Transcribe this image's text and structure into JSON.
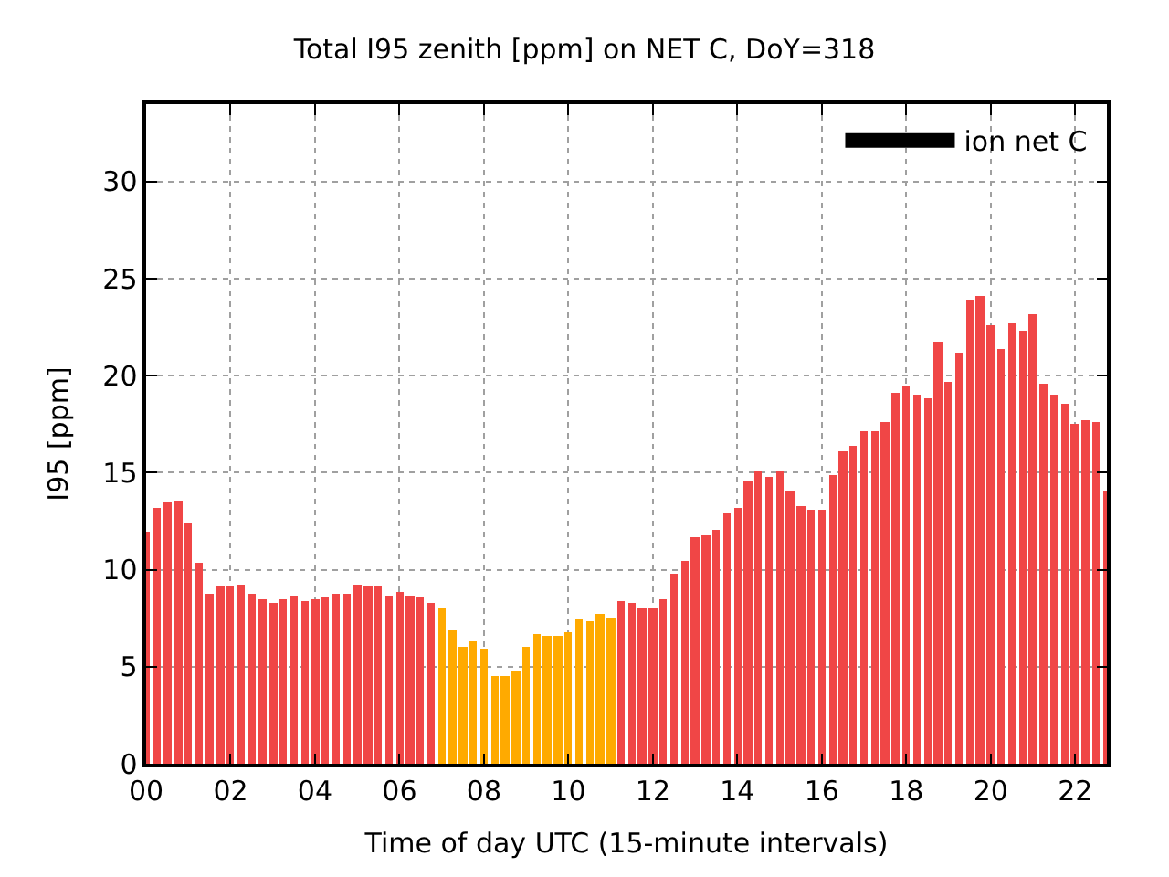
{
  "chart_data": {
    "type": "bar",
    "title": "Total I95 zenith [ppm] on NET C, DoY=318",
    "xlabel": "Time of day UTC (15-minute intervals)",
    "ylabel": "I95 [ppm]",
    "x": [
      0,
      0.25,
      0.5,
      0.75,
      1,
      1.25,
      1.5,
      1.75,
      2,
      2.25,
      2.5,
      2.75,
      3,
      3.25,
      3.5,
      3.75,
      4,
      4.25,
      4.5,
      4.75,
      5,
      5.25,
      5.5,
      5.75,
      6,
      6.25,
      6.5,
      6.75,
      7,
      7.25,
      7.5,
      7.75,
      8,
      8.25,
      8.5,
      8.75,
      9,
      9.25,
      9.5,
      9.75,
      10,
      10.25,
      10.5,
      10.75,
      11,
      11.25,
      11.5,
      11.75,
      12,
      12.25,
      12.5,
      12.75,
      13,
      13.25,
      13.5,
      13.75,
      14,
      14.25,
      14.5,
      14.75,
      15,
      15.25,
      15.5,
      15.75,
      16,
      16.25,
      16.5,
      16.75,
      17,
      17.25,
      17.5,
      17.75,
      18,
      18.25,
      18.5,
      18.75,
      19,
      19.25,
      19.5,
      19.75,
      20,
      20.25,
      20.5,
      20.75,
      21,
      21.25,
      21.5,
      21.75,
      22,
      22.25,
      22.5,
      22.75
    ],
    "series": [
      {
        "name": "ion net C",
        "color": "#000000",
        "values": [
          12.0,
          13.2,
          13.5,
          13.6,
          12.4,
          10.4,
          8.8,
          9.1,
          9.1,
          9.2,
          8.8,
          8.5,
          8.3,
          8.5,
          8.7,
          8.4,
          8.5,
          8.6,
          8.8,
          8.8,
          9.2,
          9.1,
          9.1,
          8.7,
          8.9,
          8.7,
          8.6,
          8.3,
          8.0,
          6.9,
          6.0,
          6.3,
          5.9,
          4.5,
          4.5,
          4.8,
          6.0,
          6.7,
          6.6,
          6.6,
          6.8,
          7.4,
          7.3,
          7.7,
          7.5,
          8.4,
          8.3,
          8.0,
          8.0,
          8.5,
          9.8,
          10.5,
          11.7,
          11.8,
          12.1,
          12.9,
          13.2,
          14.6,
          15.1,
          14.8,
          15.1,
          14.0,
          13.3,
          13.1,
          13.1,
          14.9,
          16.1,
          16.4,
          17.1,
          17.1,
          17.6,
          19.1,
          19.5,
          19.0,
          18.8,
          21.8,
          19.7,
          21.2,
          23.9,
          24.1,
          22.6,
          21.4,
          22.7,
          22.3,
          23.2,
          19.6,
          19.0,
          18.6,
          17.5,
          17.7,
          17.6,
          14.0
        ],
        "colors": [
          "#f04646",
          "#f04646",
          "#f04646",
          "#f04646",
          "#f04646",
          "#f04646",
          "#f04646",
          "#f04646",
          "#f04646",
          "#f04646",
          "#f04646",
          "#f04646",
          "#f04646",
          "#f04646",
          "#f04646",
          "#f04646",
          "#f04646",
          "#f04646",
          "#f04646",
          "#f04646",
          "#f04646",
          "#f04646",
          "#f04646",
          "#f04646",
          "#f04646",
          "#f04646",
          "#f04646",
          "#f04646",
          "#ffaa00",
          "#ffaa00",
          "#ffaa00",
          "#ffaa00",
          "#ffaa00",
          "#ffaa00",
          "#ffaa00",
          "#ffaa00",
          "#ffaa00",
          "#ffaa00",
          "#ffaa00",
          "#ffaa00",
          "#ffaa00",
          "#ffaa00",
          "#ffaa00",
          "#ffaa00",
          "#ffaa00",
          "#f04646",
          "#f04646",
          "#f04646",
          "#f04646",
          "#f04646",
          "#f04646",
          "#f04646",
          "#f04646",
          "#f04646",
          "#f04646",
          "#f04646",
          "#f04646",
          "#f04646",
          "#f04646",
          "#f04646",
          "#f04646",
          "#f04646",
          "#f04646",
          "#f04646",
          "#f04646",
          "#f04646",
          "#f04646",
          "#f04646",
          "#f04646",
          "#f04646",
          "#f04646",
          "#f04646",
          "#f04646",
          "#f04646",
          "#f04646",
          "#f04646",
          "#f04646",
          "#f04646",
          "#f04646",
          "#f04646",
          "#f04646",
          "#f04646",
          "#f04646",
          "#f04646",
          "#f04646",
          "#f04646",
          "#f04646",
          "#f04646",
          "#f04646",
          "#f04646",
          "#f04646",
          "#f04646"
        ]
      }
    ],
    "xlim": [
      0,
      22.75
    ],
    "xticks": [
      {
        "value": 0,
        "label": "00"
      },
      {
        "value": 2,
        "label": "02"
      },
      {
        "value": 4,
        "label": "04"
      },
      {
        "value": 6,
        "label": "06"
      },
      {
        "value": 8,
        "label": "08"
      },
      {
        "value": 10,
        "label": "10"
      },
      {
        "value": 12,
        "label": "12"
      },
      {
        "value": 14,
        "label": "14"
      },
      {
        "value": 16,
        "label": "16"
      },
      {
        "value": 18,
        "label": "18"
      },
      {
        "value": 20,
        "label": "20"
      },
      {
        "value": 22,
        "label": "22"
      }
    ],
    "ylim": [
      0,
      34
    ],
    "yticks": [
      0,
      5,
      10,
      15,
      20,
      25,
      30
    ],
    "grid": true,
    "legend": "top right"
  }
}
